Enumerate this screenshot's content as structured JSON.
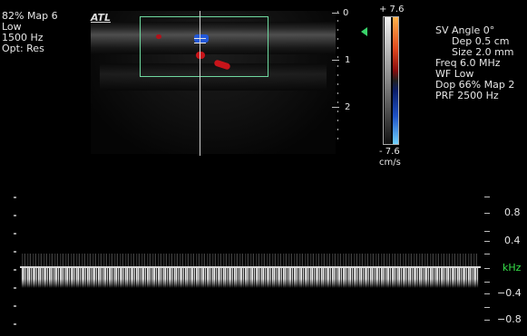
{
  "top_left": {
    "lines": [
      "82% Map 6",
      "Low",
      "1500 Hz",
      "Opt: Res"
    ]
  },
  "logo": {
    "text": "ATL"
  },
  "depth_scale": {
    "labels": [
      "0",
      "1",
      "2"
    ]
  },
  "colorbar": {
    "top_value": "+ 7.6",
    "bottom_value": "- 7.6",
    "unit": "cm/s",
    "colors": [
      "#ffb24a",
      "#c01818",
      "#303030",
      "#1e52c8",
      "#6fd1ff"
    ]
  },
  "right_panel": {
    "lines": [
      "SV Angle 0°",
      "Dep 0.5 cm",
      "Size 2.0 mm",
      "Freq 6.0 MHz",
      "WF Low",
      "Dop 66% Map 2",
      "PRF 2500 Hz"
    ]
  },
  "spectral_scale": {
    "labels": [
      "0.8",
      "0.4",
      "kHz",
      "−0.4",
      "−0.8"
    ],
    "unit_color": "#36e14a"
  },
  "colors": {
    "roi_box": "#6fd9a0",
    "cursor_line": "#cfcfcf",
    "baseline": "#d8d8d8"
  }
}
